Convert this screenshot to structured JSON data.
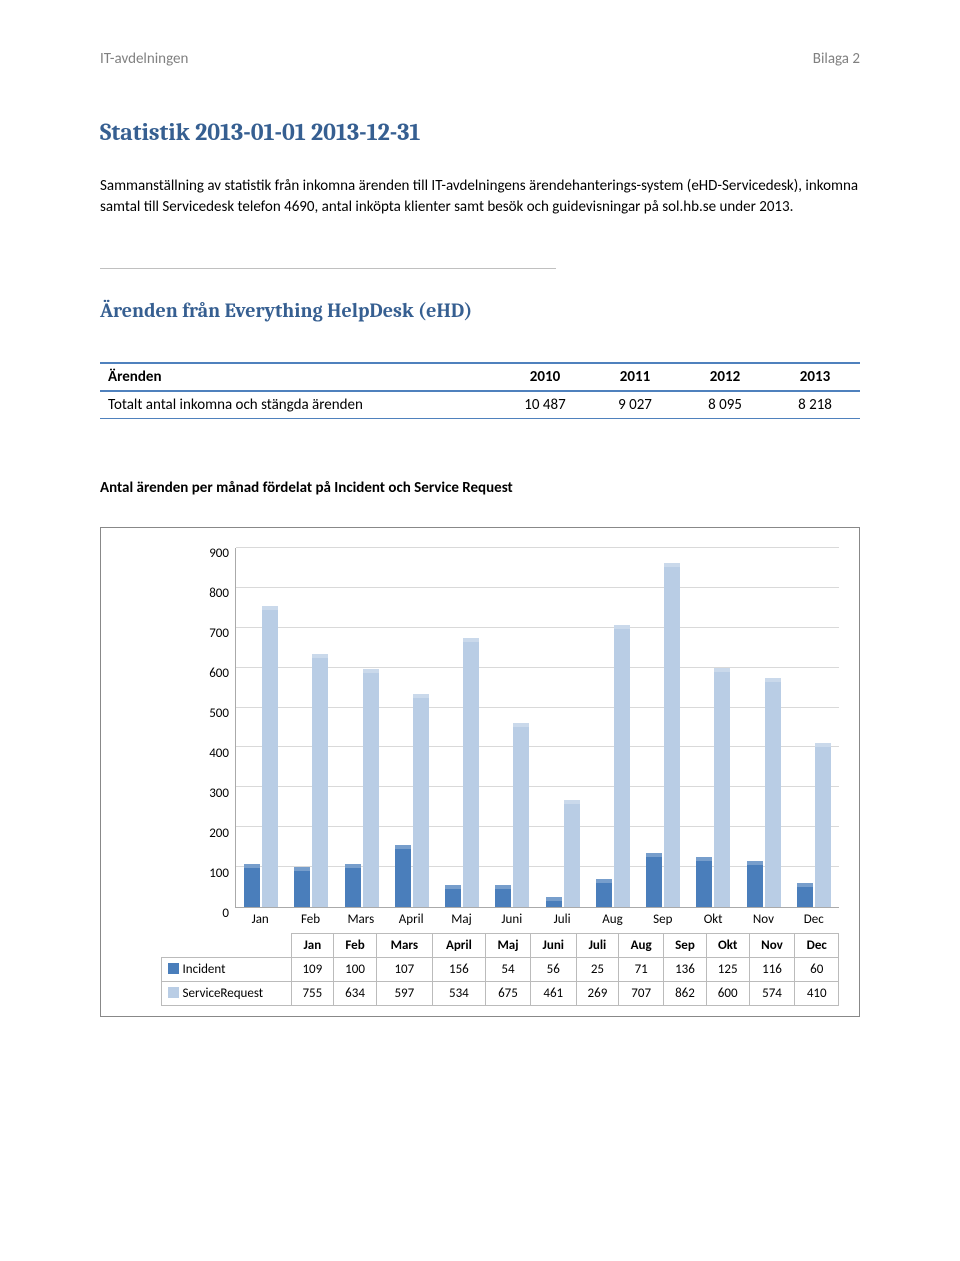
{
  "header": {
    "left": "IT-avdelningen",
    "right": "Bilaga 2"
  },
  "title": "Statistik 2013-01-01 2013-12-31",
  "intro": "Sammanställning av statistik från inkomna ärenden till IT-avdelningens ärendehanterings-system (eHD-Servicedesk), inkomna samtal till Servicedesk telefon 4690, antal inköpta klienter samt besök och guidevisningar på sol.hb.se under 2013.",
  "section1_title": "Ärenden från Everything HelpDesk (eHD)",
  "table1": {
    "head": [
      "Ärenden",
      "2010",
      "2011",
      "2012",
      "2013"
    ],
    "row1": [
      "Totalt antal inkomna och stängda ärenden",
      "10 487",
      "9 027",
      "8 095",
      "8 218"
    ]
  },
  "chart": {
    "title": "Antal ärenden per månad fördelat på Incident och Service Request",
    "ymax": 900,
    "ytick_step": 100,
    "yticks": [
      "0",
      "100",
      "200",
      "300",
      "400",
      "500",
      "600",
      "700",
      "800",
      "900"
    ],
    "months": [
      "Jan",
      "Feb",
      "Mars",
      "April",
      "Maj",
      "Juni",
      "Juli",
      "Aug",
      "Sep",
      "Okt",
      "Nov",
      "Dec"
    ],
    "series": [
      {
        "label": "Incident",
        "color": "#4a7ebb",
        "values": [
          109,
          100,
          107,
          156,
          54,
          56,
          25,
          71,
          136,
          125,
          116,
          60
        ]
      },
      {
        "label": "ServiceRequest",
        "color": "#b9cde5",
        "values": [
          755,
          634,
          597,
          534,
          675,
          461,
          269,
          707,
          862,
          600,
          574,
          410
        ]
      }
    ],
    "grid_color": "#d9d9d9",
    "axis_color": "#aaaaaa"
  }
}
